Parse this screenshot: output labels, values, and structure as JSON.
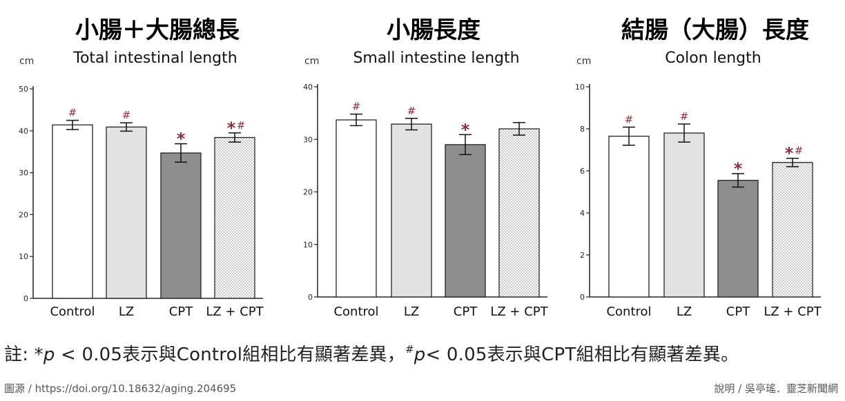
{
  "chart_data": [
    {
      "type": "bar",
      "title": "小腸＋大腸總長",
      "subtitle": "Total intestinal length",
      "ylabel": "cm",
      "ylim": [
        0,
        50
      ],
      "yticks": [
        0,
        10,
        20,
        30,
        40,
        50
      ],
      "categories": [
        "Control",
        "LZ",
        "CPT",
        "LZ + CPT"
      ],
      "values": [
        41.4,
        40.9,
        34.7,
        38.4
      ],
      "errors": [
        1.1,
        1.0,
        2.2,
        1.1
      ],
      "markers": [
        "#",
        "#",
        "*",
        "*#"
      ],
      "fills": [
        "white",
        "light",
        "dark",
        "dots"
      ]
    },
    {
      "type": "bar",
      "title": "小腸長度",
      "subtitle": "Small intestine length",
      "ylabel": "cm",
      "ylim": [
        0,
        40
      ],
      "yticks": [
        0,
        10,
        20,
        30,
        40
      ],
      "categories": [
        "Control",
        "LZ",
        "CPT",
        "LZ + CPT"
      ],
      "values": [
        33.7,
        32.9,
        29.0,
        32.0
      ],
      "errors": [
        1.1,
        1.1,
        1.9,
        1.2
      ],
      "markers": [
        "#",
        "#",
        "*",
        ""
      ],
      "fills": [
        "white",
        "light",
        "dark",
        "dots"
      ]
    },
    {
      "type": "bar",
      "title": "結腸（大腸）長度",
      "subtitle": "Colon length",
      "ylabel": "cm",
      "ylim": [
        0,
        10
      ],
      "yticks": [
        0,
        2,
        4,
        6,
        8,
        10
      ],
      "categories": [
        "Control",
        "LZ",
        "CPT",
        "LZ + CPT"
      ],
      "values": [
        7.65,
        7.8,
        5.55,
        6.4
      ],
      "errors": [
        0.43,
        0.43,
        0.32,
        0.2
      ],
      "markers": [
        "#",
        "#",
        "*",
        "*#"
      ],
      "fills": [
        "white",
        "light",
        "dark",
        "dots"
      ]
    }
  ],
  "colors": {
    "white": "#ffffff",
    "light": "#e2e2e2",
    "dark": "#8e8e8e",
    "marker": "#8b2e3c",
    "axis": "#222222"
  },
  "note": {
    "prefix": "註: ",
    "star": "*",
    "p1": "p",
    "text1": " < 0.05表示與Control組相比有顯著差異，",
    "hash": "#",
    "p2": "p",
    "text2": "< 0.05表示與CPT組相比有顯著差異。"
  },
  "source": "圖源 / https://doi.org/10.18632/aging.204695",
  "credit": "說明 / 吳亭瑤．靈芝新聞網"
}
